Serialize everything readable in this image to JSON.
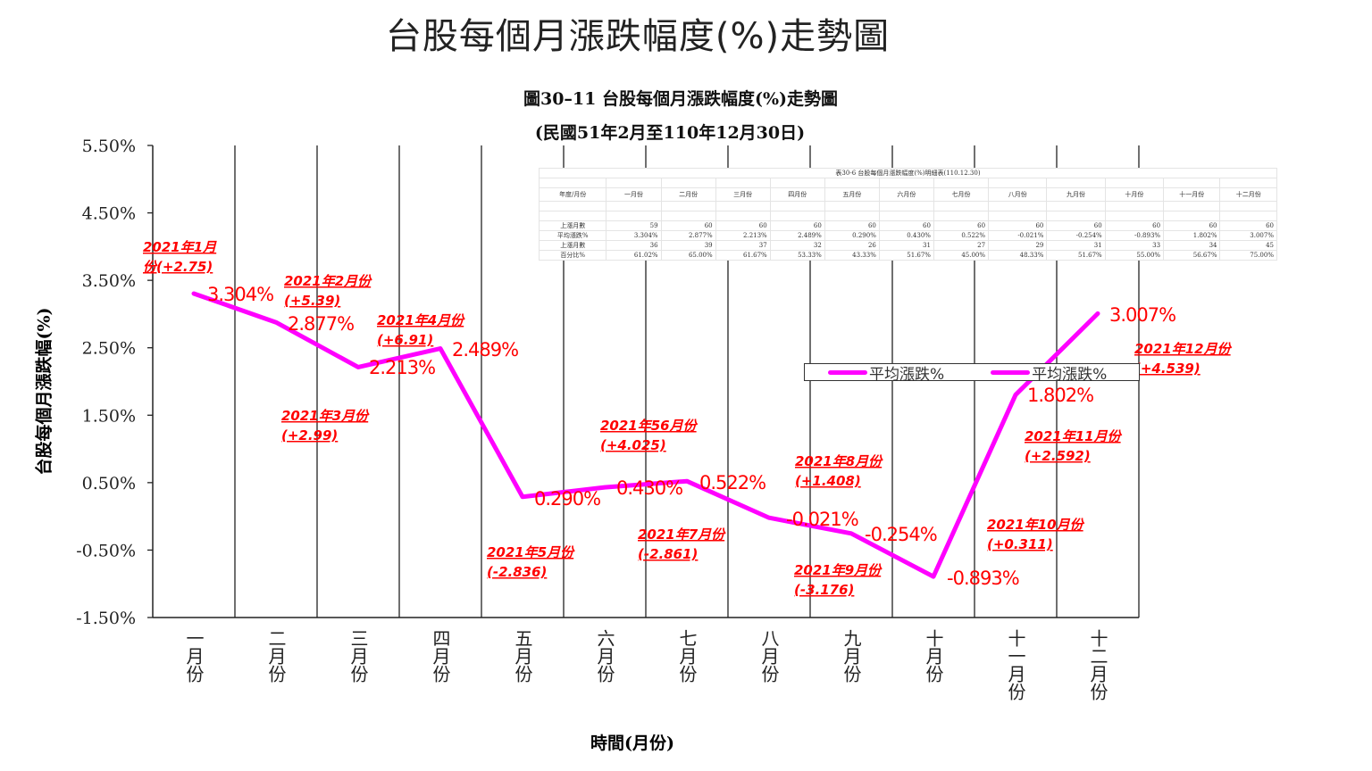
{
  "main_title": "台股每個月漲跌幅度(%)走勢圖",
  "chart_data": {
    "type": "line",
    "title": "圖30–11  台股每個月漲跌幅度(%)走勢圖",
    "subtitle": "(民國51年2月至110年12月30日)",
    "xlabel": "時間(月份)",
    "ylabel": "台股每個月漲跌幅(%)",
    "ylim": [
      -1.5,
      5.5
    ],
    "yticks": [
      "5.50%",
      "4.50%",
      "3.50%",
      "2.50%",
      "1.50%",
      "0.50%",
      "-0.50%",
      "-1.50%"
    ],
    "ytick_values": [
      5.5,
      4.5,
      3.5,
      2.5,
      1.5,
      0.5,
      -0.5,
      -1.5
    ],
    "categories": [
      "一月份",
      "二月份",
      "三月份",
      "四月份",
      "五月份",
      "六月份",
      "七月份",
      "八月份",
      "九月份",
      "十月份",
      "十一月份",
      "十二月份"
    ],
    "grid": "vertical",
    "line_color": "#ff00ff",
    "label_color": "#ff0000",
    "series": [
      {
        "name": "平均漲跌%",
        "values": [
          3.304,
          2.877,
          2.213,
          2.489,
          0.29,
          0.43,
          0.522,
          -0.021,
          -0.254,
          -0.893,
          1.802,
          3.007
        ]
      }
    ],
    "data_labels": [
      "3.304%",
      "2.877%",
      "2.213%",
      "2.489%",
      "0.290%",
      "0.430%",
      "0.522%",
      "-0.021%",
      "-0.254%",
      "-0.893%",
      "1.802%",
      "3.007%"
    ],
    "annotations": [
      {
        "line1": "2021年1月",
        "line2": "份(+2.75)"
      },
      {
        "line1": "2021年2月份",
        "line2": "(+5.39)"
      },
      {
        "line1": "2021年3月份",
        "line2": "(+2.99)"
      },
      {
        "line1": "2021年4月份",
        "line2": "(+6.91)"
      },
      {
        "line1": "2021年5月份",
        "line2": "(-2.836)"
      },
      {
        "line1": "2021年56月份",
        "line2": "(+4.025)"
      },
      {
        "line1": "2021年7月份",
        "line2": "(-2.861)"
      },
      {
        "line1": "2021年8月份",
        "line2": "(+1.408)"
      },
      {
        "line1": "2021年9月份",
        "line2": "(-3.176)"
      },
      {
        "line1": "2021年10月份",
        "line2": "(+0.311)"
      },
      {
        "line1": "2021年11月份",
        "line2": "(+2.592)"
      },
      {
        "line1": "2021年12月份",
        "line2": "(+4.539)"
      }
    ],
    "legend": {
      "placement": "right-middle",
      "entries": [
        "平均漲跌%",
        "平均漲跌%"
      ]
    }
  },
  "table": {
    "title": "表30-6  台股每個月漲跌幅度(%)明細表(110.12.30)",
    "header": [
      "年度/月份",
      "一月份",
      "二月份",
      "三月份",
      "四月份",
      "五月份",
      "六月份",
      "七月份",
      "八月份",
      "九月份",
      "十月份",
      "十一月份",
      "十二月份"
    ],
    "rows": [
      [
        "上漲月數",
        "59",
        "60",
        "60",
        "60",
        "60",
        "60",
        "60",
        "60",
        "60",
        "60",
        "60",
        "60"
      ],
      [
        "平均漲跌%",
        "3.304%",
        "2.877%",
        "2.213%",
        "2.489%",
        "0.290%",
        "0.430%",
        "0.522%",
        "-0.021%",
        "-0.254%",
        "-0.893%",
        "1.802%",
        "3.007%"
      ],
      [
        "上漲月數",
        "36",
        "39",
        "37",
        "32",
        "26",
        "31",
        "27",
        "29",
        "31",
        "33",
        "34",
        "45"
      ],
      [
        "百分比%",
        "61.02%",
        "65.00%",
        "61.67%",
        "53.33%",
        "43.33%",
        "51.67%",
        "45.00%",
        "48.33%",
        "51.67%",
        "55.00%",
        "56.67%",
        "75.00%"
      ]
    ]
  }
}
